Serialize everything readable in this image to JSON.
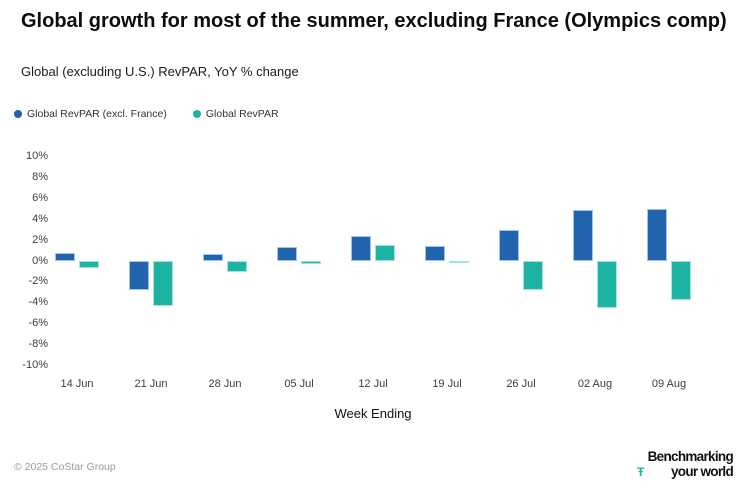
{
  "header": {
    "title": "Global growth for most of the summer, excluding France (Olympics comp)",
    "subtitle": "Global (excluding U.S.) RevPAR, YoY % change"
  },
  "legend": {
    "items": [
      {
        "label": "Global RevPAR (excl. France)",
        "color": "#2163ac"
      },
      {
        "label": "Global RevPAR",
        "color": "#1db3a3"
      }
    ]
  },
  "chart_data": {
    "type": "bar",
    "title": "Global growth for most of the summer, excluding France (Olympics comp)",
    "subtitle": "Global (excluding U.S.) RevPAR, YoY % change",
    "categories": [
      "14 Jun",
      "21 Jun",
      "28 Jun",
      "05 Jul",
      "12 Jul",
      "19 Jul",
      "26 Jul",
      "02 Aug",
      "09 Aug"
    ],
    "series": [
      {
        "name": "Global RevPAR (excl. France)",
        "color": "#2163ac",
        "border_color": "#9fc6e8",
        "values": [
          0.8,
          -2.8,
          0.7,
          1.3,
          2.4,
          1.4,
          3.0,
          4.9,
          5.0
        ]
      },
      {
        "name": "Global RevPAR",
        "color": "#1db3a3",
        "border_color": "#a5e3db",
        "values": [
          -0.7,
          -4.3,
          -1.1,
          -0.3,
          1.5,
          -0.1,
          -2.8,
          -4.5,
          -3.7
        ]
      }
    ],
    "xlabel": "Week Ending",
    "ylabel": "",
    "ylim": [
      -10,
      10
    ],
    "ytick_step": 2,
    "ytick_suffix": "%",
    "grid": false,
    "legend_position": "top-left"
  },
  "footer": {
    "copyright": "© 2025 CoStar Group",
    "logo": {
      "line1": "Benchmarking",
      "line2": "your world",
      "glyph": "Ŧ",
      "glyph_color": "#1db3a3"
    }
  }
}
